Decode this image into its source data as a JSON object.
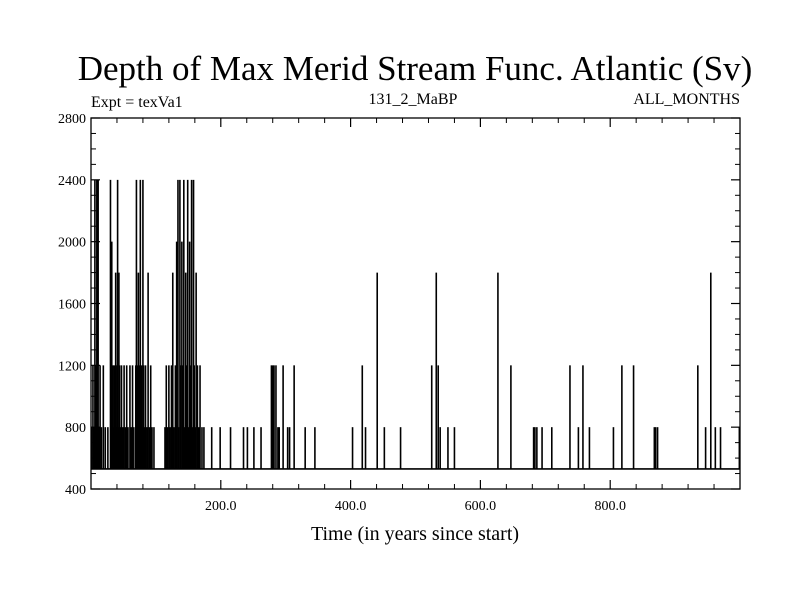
{
  "chart_data": {
    "type": "line",
    "title": "Depth of Max Merid Stream Func. Atlantic (Sv)",
    "subtitle_left": "Expt = texVa1",
    "subtitle_center": "131_2_MaBP",
    "subtitle_right": "ALL_MONTHS",
    "xlabel": "Time (in years since start)",
    "ylabel": "",
    "xlim": [
      0,
      1000
    ],
    "ylim": [
      400,
      2800
    ],
    "xticks_major": [
      200,
      400,
      600,
      800
    ],
    "xtick_labels": [
      "200.0",
      "400.0",
      "600.0",
      "800.0"
    ],
    "yticks_major": [
      400,
      800,
      1200,
      1600,
      2000,
      2400,
      2800
    ],
    "ytick_labels": [
      "400",
      "800",
      "1200",
      "1600",
      "2000",
      "2400",
      "2800"
    ],
    "baseline": 530,
    "grid": false,
    "series": [
      {
        "name": "Depth of Max Merid Stream Func.",
        "color": "#000000",
        "spikes": [
          [
            1,
            800
          ],
          [
            3,
            1200
          ],
          [
            5,
            800
          ],
          [
            6,
            2400
          ],
          [
            8,
            1200
          ],
          [
            9,
            2400
          ],
          [
            10,
            1800
          ],
          [
            11,
            2400
          ],
          [
            12,
            800
          ],
          [
            14,
            1200
          ],
          [
            16,
            800
          ],
          [
            19,
            1200
          ],
          [
            22,
            800
          ],
          [
            26,
            800
          ],
          [
            30,
            2400
          ],
          [
            31,
            1200
          ],
          [
            32,
            2000
          ],
          [
            34,
            1200
          ],
          [
            35,
            800
          ],
          [
            36,
            1200
          ],
          [
            38,
            1800
          ],
          [
            39,
            800
          ],
          [
            40,
            1200
          ],
          [
            41,
            2400
          ],
          [
            42,
            800
          ],
          [
            43,
            1800
          ],
          [
            44,
            1200
          ],
          [
            45,
            800
          ],
          [
            47,
            1200
          ],
          [
            49,
            800
          ],
          [
            51,
            1200
          ],
          [
            53,
            800
          ],
          [
            55,
            1200
          ],
          [
            57,
            800
          ],
          [
            60,
            1200
          ],
          [
            62,
            800
          ],
          [
            64,
            1200
          ],
          [
            66,
            800
          ],
          [
            69,
            1200
          ],
          [
            70,
            2400
          ],
          [
            71,
            800
          ],
          [
            72,
            1200
          ],
          [
            73,
            1800
          ],
          [
            74,
            800
          ],
          [
            75,
            1200
          ],
          [
            76,
            2400
          ],
          [
            77,
            800
          ],
          [
            78,
            1200
          ],
          [
            79,
            800
          ],
          [
            80,
            2400
          ],
          [
            81,
            1200
          ],
          [
            82,
            800
          ],
          [
            84,
            1200
          ],
          [
            86,
            800
          ],
          [
            88,
            1800
          ],
          [
            90,
            800
          ],
          [
            92,
            1200
          ],
          [
            94,
            800
          ],
          [
            97,
            800
          ],
          [
            114,
            800
          ],
          [
            116,
            1200
          ],
          [
            118,
            800
          ],
          [
            120,
            1200
          ],
          [
            122,
            800
          ],
          [
            124,
            1200
          ],
          [
            126,
            1800
          ],
          [
            128,
            800
          ],
          [
            130,
            1200
          ],
          [
            132,
            2000
          ],
          [
            134,
            2400
          ],
          [
            135,
            800
          ],
          [
            137,
            2400
          ],
          [
            138,
            1200
          ],
          [
            140,
            2000
          ],
          [
            141,
            1200
          ],
          [
            143,
            2400
          ],
          [
            144,
            800
          ],
          [
            146,
            1800
          ],
          [
            147,
            1200
          ],
          [
            149,
            2400
          ],
          [
            150,
            800
          ],
          [
            152,
            2000
          ],
          [
            153,
            1200
          ],
          [
            155,
            2400
          ],
          [
            156,
            800
          ],
          [
            158,
            2400
          ],
          [
            159,
            1200
          ],
          [
            160,
            800
          ],
          [
            162,
            1800
          ],
          [
            164,
            1200
          ],
          [
            166,
            800
          ],
          [
            168,
            1200
          ],
          [
            171,
            800
          ],
          [
            174,
            800
          ],
          [
            186,
            800
          ],
          [
            199,
            800
          ],
          [
            215,
            800
          ],
          [
            235,
            800
          ],
          [
            241,
            800
          ],
          [
            251,
            800
          ],
          [
            262,
            800
          ],
          [
            278,
            1200
          ],
          [
            280,
            1200
          ],
          [
            282,
            1200
          ],
          [
            285,
            1200
          ],
          [
            288,
            800
          ],
          [
            290,
            800
          ],
          [
            296,
            1200
          ],
          [
            303,
            800
          ],
          [
            306,
            800
          ],
          [
            313,
            1200
          ],
          [
            330,
            800
          ],
          [
            345,
            800
          ],
          [
            403,
            800
          ],
          [
            418,
            1200
          ],
          [
            423,
            800
          ],
          [
            441,
            1800
          ],
          [
            452,
            800
          ],
          [
            477,
            800
          ],
          [
            525,
            1200
          ],
          [
            532,
            1800
          ],
          [
            535,
            1200
          ],
          [
            538,
            800
          ],
          [
            550,
            800
          ],
          [
            560,
            800
          ],
          [
            627,
            1800
          ],
          [
            647,
            1200
          ],
          [
            682,
            800
          ],
          [
            684,
            800
          ],
          [
            687,
            800
          ],
          [
            695,
            800
          ],
          [
            710,
            800
          ],
          [
            738,
            1200
          ],
          [
            751,
            800
          ],
          [
            758,
            1200
          ],
          [
            768,
            800
          ],
          [
            805,
            800
          ],
          [
            818,
            1200
          ],
          [
            836,
            1200
          ],
          [
            868,
            800
          ],
          [
            870,
            800
          ],
          [
            873,
            800
          ],
          [
            935,
            1200
          ],
          [
            947,
            800
          ],
          [
            955,
            1800
          ],
          [
            962,
            800
          ],
          [
            970,
            800
          ],
          [
            999,
            800
          ]
        ]
      }
    ]
  }
}
